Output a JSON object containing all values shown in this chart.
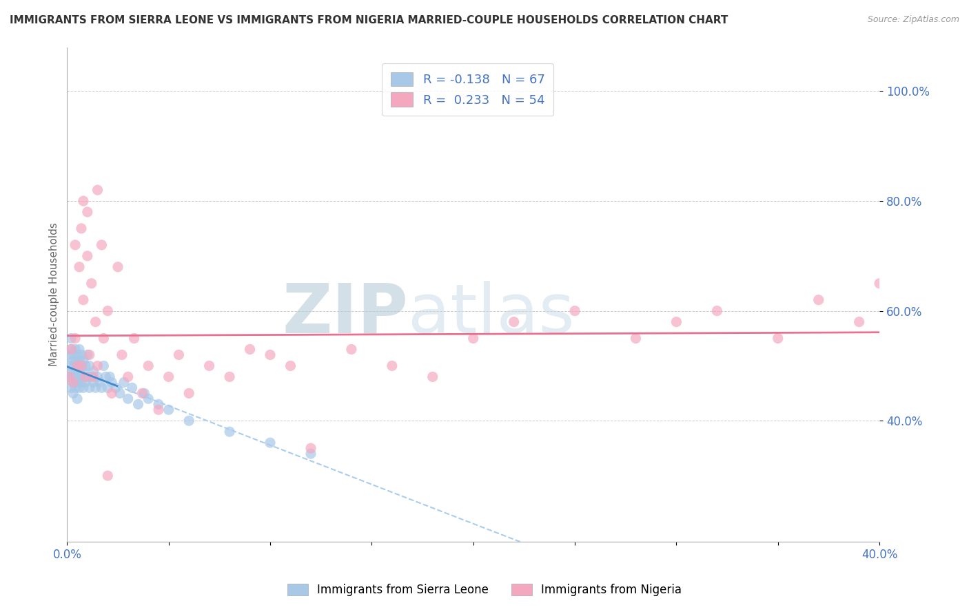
{
  "title": "IMMIGRANTS FROM SIERRA LEONE VS IMMIGRANTS FROM NIGERIA MARRIED-COUPLE HOUSEHOLDS CORRELATION CHART",
  "source_text": "Source: ZipAtlas.com",
  "ylabel": "Married-couple Households",
  "ytick_labels": [
    "100.0%",
    "80.0%",
    "60.0%",
    "40.0%"
  ],
  "ytick_values": [
    1.0,
    0.8,
    0.6,
    0.4
  ],
  "xmin": 0.0,
  "xmax": 0.4,
  "ymin": 0.18,
  "ymax": 1.08,
  "R_sierra": -0.138,
  "N_sierra": 67,
  "R_nigeria": 0.233,
  "N_nigeria": 54,
  "color_sierra": "#a8c8e8",
  "color_nigeria": "#f4a8c0",
  "color_sierra_line_solid": "#4488cc",
  "color_sierra_line_dash": "#aaccee",
  "color_nigeria_line": "#e87090",
  "watermark_ZIP": "#b8cce0",
  "watermark_atlas": "#c8d8e8",
  "legend_label_sierra": "Immigrants from Sierra Leone",
  "legend_label_nigeria": "Immigrants from Nigeria",
  "background_color": "#ffffff",
  "grid_color": "#cccccc",
  "title_color": "#333333",
  "axis_label_color": "#4472c4",
  "legend_text_color": "#4472c4",
  "sierra_x": [
    0.001,
    0.001,
    0.001,
    0.002,
    0.002,
    0.002,
    0.002,
    0.003,
    0.003,
    0.003,
    0.003,
    0.003,
    0.003,
    0.004,
    0.004,
    0.004,
    0.004,
    0.004,
    0.005,
    0.005,
    0.005,
    0.005,
    0.005,
    0.006,
    0.006,
    0.006,
    0.006,
    0.007,
    0.007,
    0.007,
    0.007,
    0.008,
    0.008,
    0.008,
    0.008,
    0.009,
    0.009,
    0.01,
    0.01,
    0.011,
    0.011,
    0.012,
    0.013,
    0.013,
    0.014,
    0.015,
    0.016,
    0.017,
    0.018,
    0.019,
    0.02,
    0.021,
    0.022,
    0.024,
    0.026,
    0.028,
    0.03,
    0.032,
    0.035,
    0.038,
    0.04,
    0.045,
    0.05,
    0.06,
    0.08,
    0.1,
    0.12
  ],
  "sierra_y": [
    0.5,
    0.52,
    0.48,
    0.46,
    0.53,
    0.49,
    0.55,
    0.47,
    0.51,
    0.48,
    0.52,
    0.45,
    0.5,
    0.47,
    0.53,
    0.49,
    0.51,
    0.46,
    0.48,
    0.52,
    0.5,
    0.47,
    0.44,
    0.49,
    0.51,
    0.46,
    0.53,
    0.48,
    0.5,
    0.47,
    0.52,
    0.48,
    0.46,
    0.51,
    0.49,
    0.5,
    0.47,
    0.48,
    0.52,
    0.46,
    0.5,
    0.48,
    0.47,
    0.49,
    0.46,
    0.48,
    0.47,
    0.46,
    0.5,
    0.48,
    0.46,
    0.48,
    0.47,
    0.46,
    0.45,
    0.47,
    0.44,
    0.46,
    0.43,
    0.45,
    0.44,
    0.43,
    0.42,
    0.4,
    0.38,
    0.36,
    0.34
  ],
  "nigeria_x": [
    0.001,
    0.002,
    0.003,
    0.004,
    0.004,
    0.005,
    0.006,
    0.007,
    0.007,
    0.008,
    0.009,
    0.01,
    0.011,
    0.012,
    0.013,
    0.014,
    0.015,
    0.017,
    0.018,
    0.02,
    0.022,
    0.025,
    0.027,
    0.03,
    0.033,
    0.037,
    0.04,
    0.045,
    0.05,
    0.055,
    0.06,
    0.07,
    0.08,
    0.09,
    0.1,
    0.11,
    0.12,
    0.14,
    0.16,
    0.18,
    0.2,
    0.22,
    0.25,
    0.28,
    0.3,
    0.32,
    0.35,
    0.37,
    0.39,
    0.4,
    0.008,
    0.01,
    0.015,
    0.02
  ],
  "nigeria_y": [
    0.48,
    0.53,
    0.47,
    0.55,
    0.72,
    0.5,
    0.68,
    0.75,
    0.5,
    0.62,
    0.48,
    0.7,
    0.52,
    0.65,
    0.48,
    0.58,
    0.5,
    0.72,
    0.55,
    0.6,
    0.45,
    0.68,
    0.52,
    0.48,
    0.55,
    0.45,
    0.5,
    0.42,
    0.48,
    0.52,
    0.45,
    0.5,
    0.48,
    0.53,
    0.52,
    0.5,
    0.35,
    0.53,
    0.5,
    0.48,
    0.55,
    0.58,
    0.6,
    0.55,
    0.58,
    0.6,
    0.55,
    0.62,
    0.58,
    0.65,
    0.8,
    0.78,
    0.82,
    0.3
  ]
}
